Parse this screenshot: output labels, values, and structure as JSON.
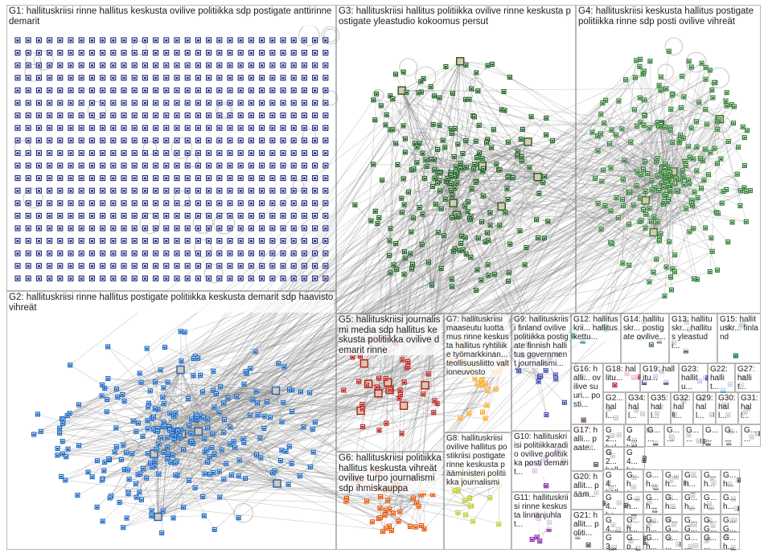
{
  "groups": [
    {
      "id": "G1",
      "label": "G1: hallituskriisi rinne hallitus keskusta ovilive politiikka sdp postigate anttirinne demarit",
      "color": "#1a237e"
    },
    {
      "id": "G2",
      "label": "G2: hallituskriisi rinne hallitus postigate politiikka keskusta demarit sdp haavisto vihreät",
      "color": "#1565c0"
    },
    {
      "id": "G3",
      "label": "G3: hallituskriisi hallitus politiikka ovilive rinne keskusta postigate yleastudio kokoomus persut",
      "color": "#1b5e20"
    },
    {
      "id": "G4",
      "label": "G4: hallituskriisi keskusta hallitus postigate politiikka rinne sdp posti ovilive vihreät",
      "color": "#2e7d32"
    },
    {
      "id": "G5",
      "label": "G5: hallituskriisi journalismi media sdp hallitus keskusta politiikka ovilive demarit rinne",
      "color": "#b71c1c"
    },
    {
      "id": "G6",
      "label": "G6: hallituskriisi politiikka hallitus keskusta vihreät ovilive turpo journalismi sdp ihmiskauppa",
      "color": "#e65100"
    },
    {
      "id": "G7",
      "label": "G7: hallituskriisi maaseutu luottamus rinne keskusta hallitus ryhtiliike työmarkkinan... teollisuusliitto valtioneuvosto",
      "color": "#f9a825"
    },
    {
      "id": "G8",
      "label": "G8: hallituskriisi ovilive hallitus postikriisi postigate rinne keskusta pääministeri politiikka journalismi",
      "color": "#c0ca33"
    },
    {
      "id": "G9",
      "label": "G9: hallituskriisi finland ovilive politiikka postigate finnish hallitus government journalismi...",
      "color": "#3949ab"
    },
    {
      "id": "G10",
      "label": "G10: hallituskriisi politiikkaradio ovilive politiikka posti demarit...",
      "color": "#7b1fa2"
    },
    {
      "id": "G11",
      "label": "G11: hallituskriisi rinne keskusta linnanjuhlat...",
      "color": "#8e24aa"
    },
    {
      "id": "G12",
      "label": "G12: hallituskrii... hallitus kettu...",
      "color": "#00838f"
    },
    {
      "id": "G14",
      "label": "G14: hallituskr... postigate ovilive...",
      "color": "#546e7a"
    },
    {
      "id": "G13",
      "label": "G13: hallituskr... hallitus yleastudi...",
      "color": "#6d4c41"
    },
    {
      "id": "G15",
      "label": "G15: hallituskr... finland",
      "color": "#00695c"
    },
    {
      "id": "G16",
      "label": "G16: halli... ovilive suuri... posti...",
      "color": "#5d4037"
    },
    {
      "id": "G18",
      "label": "G18: hallitu...",
      "color": "#ad1457"
    },
    {
      "id": "G19",
      "label": "G19: hallitu...",
      "color": "#283593"
    },
    {
      "id": "G23",
      "label": "G23: hallitu...",
      "color": "#4527a0"
    },
    {
      "id": "G22",
      "label": "G22: hallit...",
      "color": "#0277bd"
    },
    {
      "id": "G27",
      "label": "G27: hallit...",
      "color": "#558b2f"
    },
    {
      "id": "G2x",
      "label": "G2... hall...",
      "color": "#37474f"
    },
    {
      "id": "G34",
      "label": "G34: hall...",
      "color": "#37474f"
    },
    {
      "id": "G35",
      "label": "G35: hall...",
      "color": "#37474f"
    },
    {
      "id": "G32",
      "label": "G32: hall...",
      "color": "#37474f"
    },
    {
      "id": "G29",
      "label": "G29: hall...",
      "color": "#37474f"
    },
    {
      "id": "G30",
      "label": "G30: hall...",
      "color": "#37474f"
    },
    {
      "id": "G31",
      "label": "G31: hall...",
      "color": "#37474f"
    },
    {
      "id": "G17",
      "label": "G17: halli... paate...",
      "color": "#455a64"
    },
    {
      "id": "G20",
      "label": "G20: hallit... pääm...",
      "color": "#455a64"
    },
    {
      "id": "G21",
      "label": "G21: hallit... politi...",
      "color": "#455a64"
    },
    {
      "id": "G2y",
      "label": "G2... hall...",
      "color": "#37474f"
    },
    {
      "id": "G2z",
      "label": "G2... halli...",
      "color": "#37474f"
    },
    {
      "id": "G4a",
      "label": "G4... halli...",
      "color": "#37474f"
    },
    {
      "id": "G4b",
      "label": "G4... ha...",
      "color": "#37474f"
    },
    {
      "id": "G4c",
      "label": "G4... hall...",
      "color": "#37474f"
    },
    {
      "id": "G4d",
      "label": "G4... hall...",
      "color": "#37474f"
    },
    {
      "id": "G4e",
      "label": "G4... hal...",
      "color": "#37474f"
    },
    {
      "id": "G3x",
      "label": "G3... hall...",
      "color": "#37474f"
    },
    {
      "id": "Ga1",
      "label": "G... ...",
      "color": "#37474f"
    },
    {
      "id": "Ga2",
      "label": "G... ...",
      "color": "#37474f"
    },
    {
      "id": "Ga3",
      "label": "G... ...",
      "color": "#37474f"
    },
    {
      "id": "Ga4",
      "label": "G... ...",
      "color": "#37474f"
    },
    {
      "id": "Ga5",
      "label": "G... ...",
      "color": "#37474f"
    },
    {
      "id": "Ga6",
      "label": "G... ...",
      "color": "#37474f"
    },
    {
      "id": "Gb1",
      "label": "G... ha...",
      "color": "#37474f"
    },
    {
      "id": "Gb2",
      "label": "G... h...",
      "color": "#37474f"
    },
    {
      "id": "Gb3",
      "label": "G... h...",
      "color": "#37474f"
    },
    {
      "id": "Gb4",
      "label": "G... h...",
      "color": "#37474f"
    },
    {
      "id": "Gb5",
      "label": "G... h...",
      "color": "#37474f"
    },
    {
      "id": "Gb6",
      "label": "G... h...",
      "color": "#37474f"
    },
    {
      "id": "Gc1",
      "label": "G... h...",
      "color": "#37474f"
    },
    {
      "id": "Gc2",
      "label": "G... h...",
      "color": "#37474f"
    },
    {
      "id": "Gc3",
      "label": "G... h...",
      "color": "#37474f"
    },
    {
      "id": "Gc4",
      "label": "G... h...",
      "color": "#37474f"
    },
    {
      "id": "Gc5",
      "label": "G... h...",
      "color": "#37474f"
    },
    {
      "id": "Gc6",
      "label": "G... h...",
      "color": "#37474f"
    },
    {
      "id": "Gd1",
      "label": "G... h...",
      "color": "#37474f"
    },
    {
      "id": "Gd2",
      "label": "G... h...",
      "color": "#37474f"
    },
    {
      "id": "Gd3",
      "label": "G... G...",
      "color": "#37474f"
    },
    {
      "id": "Gd4",
      "label": "G... G...",
      "color": "#37474f"
    },
    {
      "id": "Gd5",
      "label": "G... G...",
      "color": "#37474f"
    },
    {
      "id": "Gd6",
      "label": "G... G...",
      "color": "#37474f"
    },
    {
      "id": "Ge1",
      "label": "G... p... h...",
      "color": "#37474f"
    },
    {
      "id": "Ge2",
      "label": "G... h...",
      "color": "#37474f"
    },
    {
      "id": "Ge3",
      "label": "G... ...",
      "color": "#37474f"
    },
    {
      "id": "Ge4",
      "label": "G... ...",
      "color": "#37474f"
    },
    {
      "id": "Ge5",
      "label": "G... ...",
      "color": "#37474f"
    },
    {
      "id": "Ge6",
      "label": "G... h...",
      "color": "#37474f"
    }
  ]
}
